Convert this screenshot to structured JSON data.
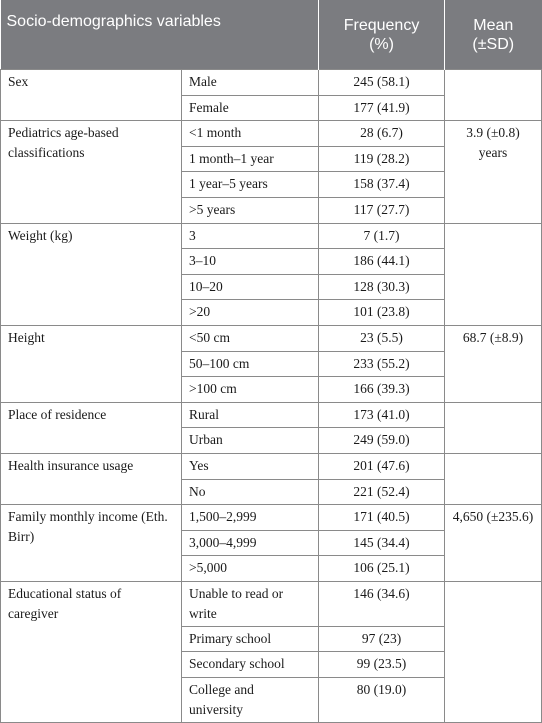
{
  "headers": {
    "variable": "Socio-demographics variables",
    "frequency_line1": "Frequency",
    "frequency_line2": "(%)",
    "mean_line1": "Mean",
    "mean_line2": "(±SD)"
  },
  "groups": [
    {
      "label": "Sex",
      "mean": "",
      "rows": [
        {
          "category": "Male",
          "frequency": "245 (58.1)"
        },
        {
          "category": "Female",
          "frequency": "177 (41.9)"
        }
      ]
    },
    {
      "label": "Pediatrics age-based classifications",
      "mean": "3.9 (±0.8) years",
      "rows": [
        {
          "category": "<1 month",
          "frequency": "28 (6.7)"
        },
        {
          "category": "1 month–1 year",
          "frequency": "119 (28.2)"
        },
        {
          "category": "1 year–5 years",
          "frequency": "158 (37.4)"
        },
        {
          "category": ">5 years",
          "frequency": "117 (27.7)"
        }
      ]
    },
    {
      "label": "Weight (kg)",
      "mean": "",
      "rows": [
        {
          "category": "3",
          "frequency": "7 (1.7)"
        },
        {
          "category": "3–10",
          "frequency": "186 (44.1)"
        },
        {
          "category": "10–20",
          "frequency": "128 (30.3)"
        },
        {
          "category": ">20",
          "frequency": "101 (23.8)"
        }
      ]
    },
    {
      "label": "Height",
      "mean": "68.7 (±8.9)",
      "rows": [
        {
          "category": "<50 cm",
          "frequency": "23 (5.5)"
        },
        {
          "category": "50–100 cm",
          "frequency": "233 (55.2)"
        },
        {
          "category": ">100 cm",
          "frequency": "166 (39.3)"
        }
      ]
    },
    {
      "label": "Place of residence",
      "mean": "",
      "rows": [
        {
          "category": "Rural",
          "frequency": "173 (41.0)"
        },
        {
          "category": "Urban",
          "frequency": "249 (59.0)"
        }
      ]
    },
    {
      "label": "Health insurance usage",
      "mean": "",
      "rows": [
        {
          "category": "Yes",
          "frequency": "201 (47.6)"
        },
        {
          "category": "No",
          "frequency": "221 (52.4)"
        }
      ]
    },
    {
      "label": "Family monthly income (Eth. Birr)",
      "mean": "4,650 (±235.6)",
      "rows": [
        {
          "category": "1,500–2,999",
          "frequency": "171 (40.5)"
        },
        {
          "category": "3,000–4,999",
          "frequency": "145 (34.4)"
        },
        {
          "category": ">5,000",
          "frequency": "106 (25.1)"
        }
      ]
    },
    {
      "label": "Educational status of caregiver",
      "mean": "",
      "rows": [
        {
          "category": "Unable to read or write",
          "frequency": "146 (34.6)"
        },
        {
          "category": "Primary school",
          "frequency": "97 (23)"
        },
        {
          "category": "Secondary school",
          "frequency": "99 (23.5)"
        },
        {
          "category": "College and university",
          "frequency": "80 (19.0)"
        }
      ]
    }
  ]
}
